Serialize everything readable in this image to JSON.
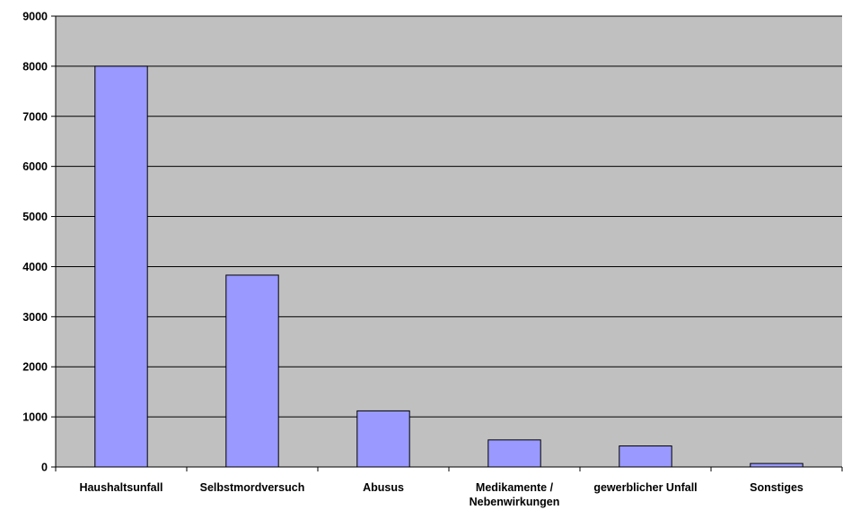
{
  "chart_data": {
    "type": "bar",
    "title": "",
    "xlabel": "",
    "ylabel": "",
    "categories": [
      [
        "Haushaltsunfall"
      ],
      [
        "Selbstmordversuch"
      ],
      [
        "Abusus"
      ],
      [
        "Medikamente /",
        "Nebenwirkungen"
      ],
      [
        "gewerblicher Unfall"
      ],
      [
        "Sonstiges"
      ]
    ],
    "values": [
      8000,
      3830,
      1120,
      540,
      420,
      70
    ],
    "ylim": [
      0,
      9000
    ],
    "yticks": [
      0,
      1000,
      2000,
      3000,
      4000,
      5000,
      6000,
      7000,
      8000,
      9000
    ],
    "grid": true,
    "legend": "none",
    "colors": {
      "plot_background": "#c0c0c0",
      "bar_fill": "#9999ff",
      "bar_stroke": "#000000",
      "gridline": "#000000"
    }
  }
}
